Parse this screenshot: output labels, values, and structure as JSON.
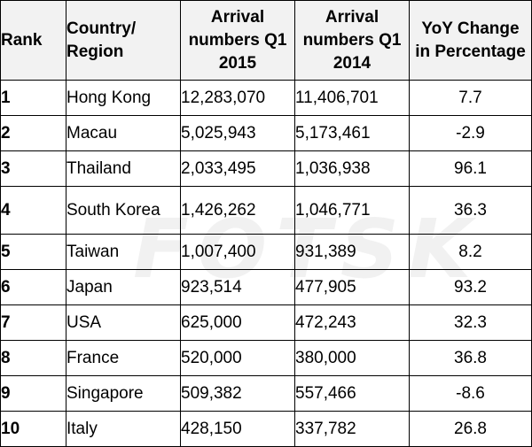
{
  "watermark": "FOTSK",
  "table": {
    "headers": {
      "rank": "Rank",
      "country": [
        "Country/",
        "Region"
      ],
      "q1_2015": [
        "Arrival",
        "numbers Q1",
        "2015"
      ],
      "q1_2014": [
        "Arrival",
        "numbers Q1",
        "2014"
      ],
      "yoy": [
        "YoY Change",
        "in Percentage"
      ]
    },
    "rows": [
      {
        "rank": "1",
        "country": "Hong Kong",
        "q1_2015": "12,283,070",
        "q1_2014": "11,406,701",
        "yoy": "7.7"
      },
      {
        "rank": "2",
        "country": "Macau",
        "q1_2015": "5,025,943",
        "q1_2014": "5,173,461",
        "yoy": "-2.9"
      },
      {
        "rank": "3",
        "country": "Thailand",
        "q1_2015": "2,033,495",
        "q1_2014": "1,036,938",
        "yoy": "96.1"
      },
      {
        "rank": "4",
        "country": "South Korea",
        "q1_2015": "1,426,262",
        "q1_2014": "1,046,771",
        "yoy": "36.3"
      },
      {
        "rank": "5",
        "country": "Taiwan",
        "q1_2015": "1,007,400",
        "q1_2014": "931,389",
        "yoy": "8.2"
      },
      {
        "rank": "6",
        "country": "Japan",
        "q1_2015": "923,514",
        "q1_2014": "477,905",
        "yoy": "93.2"
      },
      {
        "rank": "7",
        "country": "USA",
        "q1_2015": "625,000",
        "q1_2014": "472,243",
        "yoy": "32.3"
      },
      {
        "rank": "8",
        "country": "France",
        "q1_2015": "520,000",
        "q1_2014": "380,000",
        "yoy": "36.8"
      },
      {
        "rank": "9",
        "country": "Singapore",
        "q1_2015": "509,382",
        "q1_2014": "557,466",
        "yoy": "-8.6"
      },
      {
        "rank": "10",
        "country": "Italy",
        "q1_2015": "428,150",
        "q1_2014": "337,782",
        "yoy": "26.8"
      }
    ]
  }
}
